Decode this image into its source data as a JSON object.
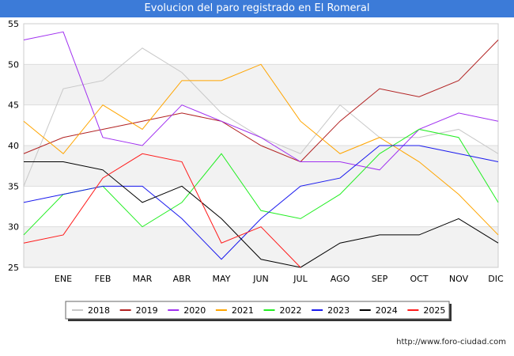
{
  "chart_data": {
    "type": "line",
    "title": "Evolucion del paro registrado en El Romeral",
    "categories": [
      "ENE",
      "FEB",
      "MAR",
      "ABR",
      "MAY",
      "JUN",
      "JUL",
      "AGO",
      "SEP",
      "OCT",
      "NOV",
      "DIC"
    ],
    "ylim": [
      25,
      55
    ],
    "yticks": [
      25,
      30,
      35,
      40,
      45,
      50,
      55
    ],
    "series": [
      {
        "name": "2018",
        "color": "#c8c8c8",
        "start": 35,
        "values": [
          47,
          48,
          52,
          49,
          44,
          41,
          39,
          45,
          41,
          41,
          42,
          39
        ]
      },
      {
        "name": "2019",
        "color": "#b22222",
        "start": 39,
        "values": [
          41,
          42,
          43,
          44,
          43,
          40,
          38,
          43,
          47,
          46,
          48,
          53
        ]
      },
      {
        "name": "2020",
        "color": "#a030f0",
        "start": 53,
        "values": [
          54,
          41,
          40,
          45,
          43,
          41,
          38,
          38,
          37,
          42,
          44,
          43
        ]
      },
      {
        "name": "2021",
        "color": "#ffa500",
        "start": 43,
        "values": [
          39,
          45,
          42,
          48,
          48,
          50,
          43,
          39,
          41,
          38,
          34,
          29
        ]
      },
      {
        "name": "2022",
        "color": "#22ee22",
        "start": 29,
        "values": [
          34,
          35,
          30,
          33,
          39,
          32,
          31,
          34,
          39,
          42,
          41,
          33
        ]
      },
      {
        "name": "2023",
        "color": "#1a1aee",
        "start": 33,
        "values": [
          34,
          35,
          35,
          31,
          26,
          31,
          35,
          36,
          40,
          40,
          39,
          38
        ]
      },
      {
        "name": "2024",
        "color": "#000000",
        "start": 38,
        "values": [
          38,
          37,
          33,
          35,
          31,
          26,
          25,
          28,
          29,
          29,
          31,
          28
        ]
      },
      {
        "name": "2025",
        "color": "#ff1a1a",
        "start": 28,
        "values": [
          29,
          36,
          39,
          38,
          28,
          30,
          25,
          null,
          null,
          null,
          null,
          null
        ]
      }
    ]
  },
  "footer": {
    "url": "http://www.foro-ciudad.com"
  }
}
